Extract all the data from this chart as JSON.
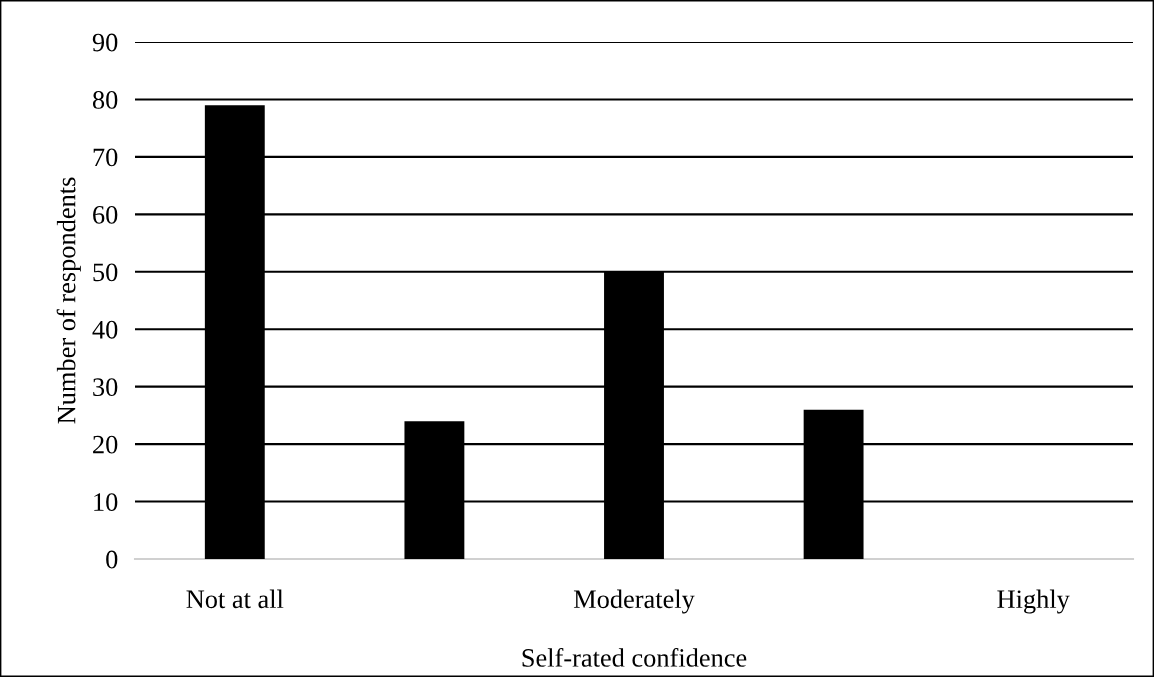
{
  "chart_data": {
    "type": "bar",
    "xlabel": "Self-rated confidence",
    "ylabel": "Number of respondents",
    "categories": [
      "Not at all",
      null,
      "Moderately",
      null,
      "Highly"
    ],
    "values": [
      79,
      24,
      50,
      26,
      0
    ],
    "color": "#000000",
    "ylim": [
      0,
      90
    ],
    "yticks": [
      0,
      10,
      20,
      30,
      40,
      50,
      60,
      70,
      80,
      90
    ],
    "grid": "y"
  }
}
